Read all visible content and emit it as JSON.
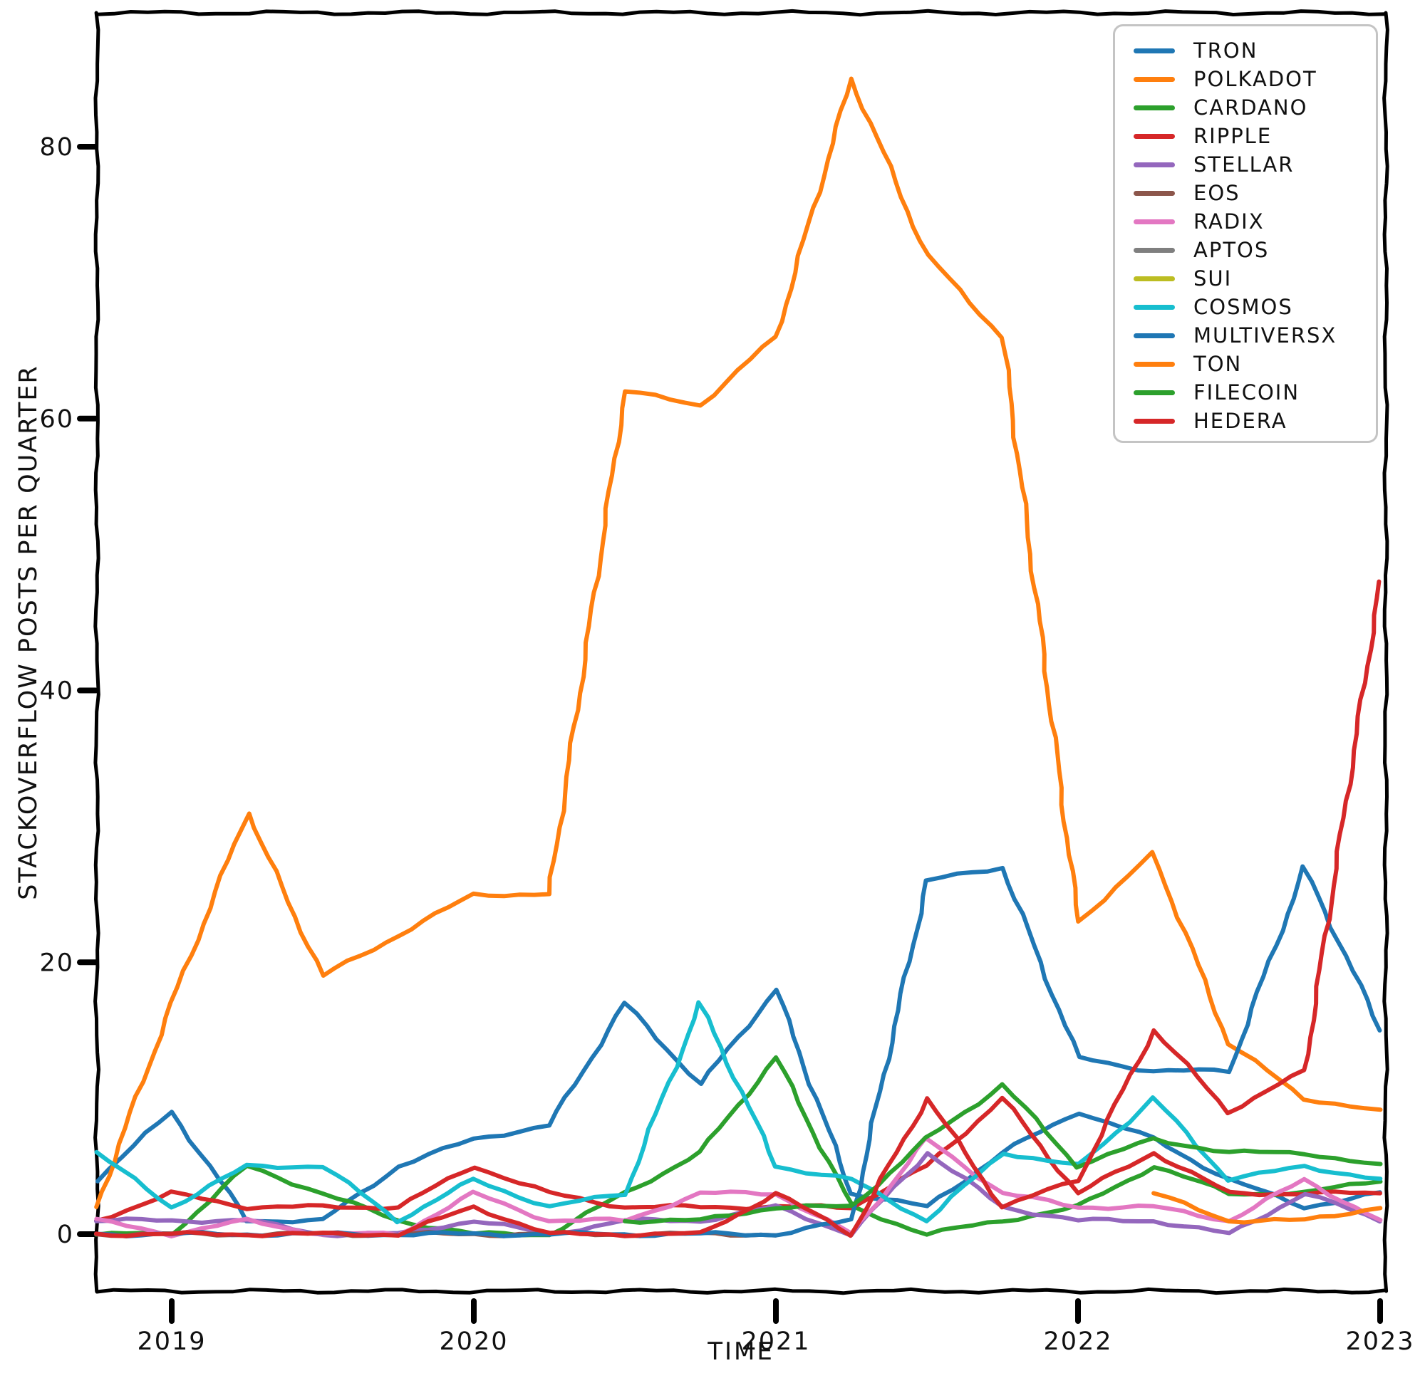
{
  "chart_data": {
    "type": "line",
    "title": "",
    "xlabel": "TIME",
    "ylabel": "STACKOVERFLOW POSTS PER QUARTER",
    "style": "xkcd-handdrawn",
    "grid": false,
    "legend_position": "upper right",
    "x": [
      2018.75,
      2019.0,
      2019.25,
      2019.5,
      2019.75,
      2020.0,
      2020.25,
      2020.5,
      2020.75,
      2021.0,
      2021.25,
      2021.5,
      2021.75,
      2022.0,
      2022.25,
      2022.5,
      2022.75,
      2023.0
    ],
    "x_ticks": [
      "2019",
      "2020",
      "2021",
      "2022",
      "2023"
    ],
    "x_tick_values": [
      2019,
      2020,
      2021,
      2022,
      2023
    ],
    "y_ticks": [
      "0",
      "20",
      "40",
      "60",
      "80"
    ],
    "y_tick_values": [
      0,
      20,
      40,
      60,
      80
    ],
    "xlim": [
      2018.72,
      2023.02
    ],
    "ylim": [
      -4,
      90
    ],
    "series": [
      {
        "name": "TRON",
        "color": "#1f77b4",
        "values": [
          4,
          9,
          1,
          1,
          5,
          7,
          8,
          17,
          11,
          18,
          3,
          2,
          6,
          9,
          7,
          4,
          2,
          3
        ]
      },
      {
        "name": "POLKADOT",
        "color": "#ff7f0e",
        "values": [
          2,
          17,
          31,
          19,
          22,
          25,
          25,
          62,
          61,
          66,
          85,
          72,
          66,
          23,
          28,
          14,
          10,
          9
        ]
      },
      {
        "name": "CARDANO",
        "color": "#2ca02c",
        "values": [
          0,
          0,
          5,
          3,
          1,
          0,
          0,
          3,
          6,
          13,
          2,
          0,
          1,
          2,
          5,
          3,
          3,
          4
        ]
      },
      {
        "name": "RIPPLE",
        "color": "#d62728",
        "values": [
          1,
          3,
          2,
          2,
          2,
          5,
          3,
          2,
          2,
          2,
          2,
          5,
          10,
          3,
          6,
          3,
          3,
          3
        ]
      },
      {
        "name": "STELLAR",
        "color": "#9467bd",
        "values": [
          1,
          1,
          1,
          0,
          0,
          1,
          0,
          1,
          1,
          2,
          0,
          6,
          2,
          1,
          1,
          0,
          3,
          1
        ]
      },
      {
        "name": "EOS",
        "color": "#8c564b",
        "values": [
          0,
          0,
          0,
          0,
          0,
          0,
          0,
          0,
          0,
          0,
          null,
          null,
          null,
          null,
          null,
          null,
          null,
          null
        ]
      },
      {
        "name": "RADIX",
        "color": "#e377c2",
        "values": [
          1,
          0,
          1,
          0,
          0,
          3,
          1,
          1,
          3,
          3,
          0,
          7,
          3,
          2,
          2,
          1,
          4,
          1
        ]
      },
      {
        "name": "APTOS",
        "color": "#7f7f7f",
        "values": [
          null,
          null,
          null,
          null,
          null,
          null,
          null,
          null,
          null,
          null,
          null,
          null,
          null,
          null,
          null,
          null,
          null,
          null
        ]
      },
      {
        "name": "SUI",
        "color": "#bcbd22",
        "values": [
          null,
          null,
          null,
          null,
          null,
          null,
          null,
          null,
          null,
          null,
          null,
          null,
          null,
          null,
          null,
          null,
          null,
          null
        ]
      },
      {
        "name": "COSMOS",
        "color": "#17becf",
        "values": [
          6,
          2,
          5,
          5,
          1,
          4,
          2,
          3,
          17,
          5,
          4,
          1,
          6,
          5,
          10,
          4,
          5,
          4
        ]
      },
      {
        "name": "MULTIVERSX",
        "color": "#1f77b4",
        "values": [
          0,
          0,
          0,
          0,
          0,
          0,
          0,
          0,
          0,
          0,
          1,
          26,
          27,
          13,
          12,
          12,
          27,
          15
        ]
      },
      {
        "name": "TON",
        "color": "#ff7f0e",
        "values": [
          null,
          null,
          null,
          null,
          null,
          null,
          null,
          null,
          null,
          null,
          null,
          null,
          null,
          null,
          3,
          1,
          1,
          2
        ]
      },
      {
        "name": "FILECOIN",
        "color": "#2ca02c",
        "values": [
          null,
          null,
          null,
          null,
          null,
          null,
          null,
          1,
          1,
          2,
          2,
          7,
          11,
          5,
          7,
          6,
          6,
          5
        ]
      },
      {
        "name": "HEDERA",
        "color": "#d62728",
        "values": [
          0,
          0,
          0,
          0,
          0,
          2,
          0,
          0,
          0,
          3,
          0,
          10,
          2,
          4,
          15,
          9,
          12,
          48
        ]
      }
    ]
  }
}
